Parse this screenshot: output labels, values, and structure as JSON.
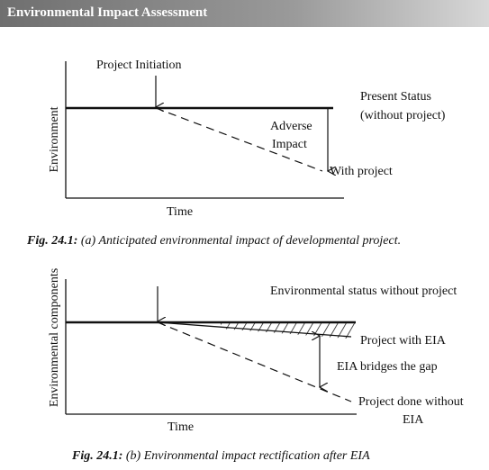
{
  "header": {
    "title": "Environmental Impact Assessment"
  },
  "figures": [
    {
      "labels": {
        "y_axis": "Environment",
        "x_axis": "Time",
        "start": "Project Initiation",
        "present_1": "Present Status",
        "present_2": "(without project)",
        "adverse_1": "Adverse",
        "adverse_2": "Impact",
        "with_project": "With project"
      },
      "caption": {
        "number": "Fig. 24.1:",
        "text": "(a) Anticipated environmental impact of developmental project."
      }
    },
    {
      "labels": {
        "y_axis": "Environmental components",
        "x_axis": "Time",
        "status": "Environmental status without project",
        "with_eia": "Project with EIA",
        "gap": "EIA bridges the gap",
        "without_1": "Project done without",
        "without_2": "EIA"
      },
      "caption": {
        "number": "Fig. 24.1:",
        "text": "(b) Environmental impact rectification after EIA"
      }
    }
  ]
}
